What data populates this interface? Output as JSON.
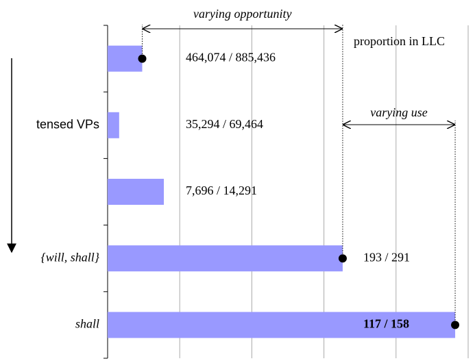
{
  "chart_data": {
    "type": "bar",
    "orientation": "horizontal",
    "categories": [
      null,
      "tensed VPs",
      null,
      "{will, shall}",
      "shall"
    ],
    "values": [
      0.524,
      0.508,
      0.539,
      0.663,
      0.741
    ],
    "bar_labels": [
      "464,074 / 885,436",
      "35,294 / 69,464",
      "7,696 / 14,291",
      "193 / 291",
      "117 / 158"
    ],
    "color": "#9999ff",
    "xlim": [
      0.5,
      0.75
    ],
    "xticks": [
      0.55,
      0.6,
      0.65,
      0.7,
      0.75
    ],
    "grid": true,
    "annotations": [
      "varying opportunity",
      "varying use",
      "proportion in LLC"
    ]
  }
}
